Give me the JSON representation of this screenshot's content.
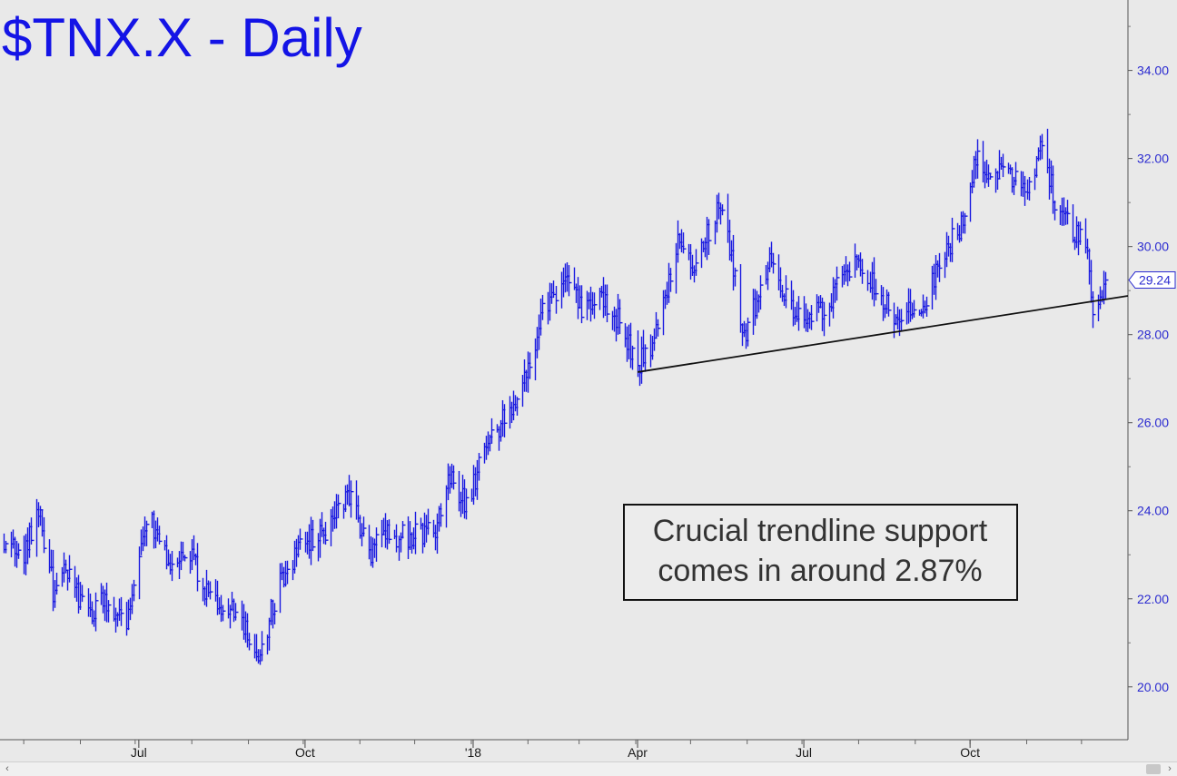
{
  "chart_data": {
    "type": "ohlc",
    "title": "$TNX.X - Daily",
    "ylim": [
      18.8,
      35.6
    ],
    "y_ticks": [
      20,
      22,
      24,
      26,
      28,
      30,
      32,
      34
    ],
    "y_tick_labels": [
      "20.00",
      "22.00",
      "24.00",
      "26.00",
      "28.00",
      "30.00",
      "32.00",
      "34.00"
    ],
    "x_start": "2017-04-20",
    "x_end": "2018-12-14",
    "x_ticks": [
      {
        "label": "Jul",
        "date": "2017-07-03"
      },
      {
        "label": "Oct",
        "date": "2017-10-02"
      },
      {
        "label": "'18",
        "date": "2018-01-02"
      },
      {
        "label": "Apr",
        "date": "2018-04-02"
      },
      {
        "label": "Jul",
        "date": "2018-07-02"
      },
      {
        "label": "Oct",
        "date": "2018-10-01"
      }
    ],
    "last_value": "29.24",
    "price_path": [
      [
        "2017-04-20",
        23.2
      ],
      [
        "2017-05-01",
        23.0
      ],
      [
        "2017-05-09",
        24.0
      ],
      [
        "2017-05-12",
        23.4
      ],
      [
        "2017-05-17",
        22.2
      ],
      [
        "2017-05-24",
        22.7
      ],
      [
        "2017-06-06",
        21.5
      ],
      [
        "2017-06-14",
        22.0
      ],
      [
        "2017-06-26",
        21.4
      ],
      [
        "2017-07-07",
        23.8
      ],
      [
        "2017-07-12",
        23.6
      ],
      [
        "2017-07-20",
        22.7
      ],
      [
        "2017-07-28",
        23.2
      ],
      [
        "2017-08-11",
        22.0
      ],
      [
        "2017-08-25",
        21.7
      ],
      [
        "2017-09-07",
        20.6
      ],
      [
        "2017-09-13",
        21.7
      ],
      [
        "2017-09-21",
        22.7
      ],
      [
        "2017-10-03",
        23.3
      ],
      [
        "2017-10-11",
        23.4
      ],
      [
        "2017-10-25",
        24.4
      ],
      [
        "2017-11-07",
        23.1
      ],
      [
        "2017-11-14",
        23.5
      ],
      [
        "2017-11-24",
        23.4
      ],
      [
        "2017-12-06",
        23.5
      ],
      [
        "2017-12-13",
        23.6
      ],
      [
        "2017-12-20",
        24.8
      ],
      [
        "2017-12-29",
        24.1
      ],
      [
        "2018-01-09",
        25.5
      ],
      [
        "2018-01-24",
        26.4
      ],
      [
        "2018-02-01",
        27.2
      ],
      [
        "2018-02-09",
        28.5
      ],
      [
        "2018-02-21",
        29.4
      ],
      [
        "2018-03-01",
        28.6
      ],
      [
        "2018-03-12",
        28.8
      ],
      [
        "2018-03-22",
        28.4
      ],
      [
        "2018-04-02",
        27.3
      ],
      [
        "2018-04-10",
        27.8
      ],
      [
        "2018-04-24",
        30.0
      ],
      [
        "2018-05-02",
        29.5
      ],
      [
        "2018-05-17",
        31.0
      ],
      [
        "2018-05-25",
        29.3
      ],
      [
        "2018-05-29",
        27.9
      ],
      [
        "2018-06-13",
        29.6
      ],
      [
        "2018-06-28",
        28.5
      ],
      [
        "2018-07-13",
        28.5
      ],
      [
        "2018-07-24",
        29.4
      ],
      [
        "2018-08-01",
        29.8
      ],
      [
        "2018-08-13",
        28.8
      ],
      [
        "2018-08-22",
        28.3
      ],
      [
        "2018-09-06",
        28.8
      ],
      [
        "2018-09-17",
        29.9
      ],
      [
        "2018-09-28",
        30.6
      ],
      [
        "2018-10-05",
        32.2
      ],
      [
        "2018-10-12",
        31.4
      ],
      [
        "2018-10-19",
        31.9
      ],
      [
        "2018-11-01",
        31.1
      ],
      [
        "2018-11-08",
        32.2
      ],
      [
        "2018-11-16",
        31.1
      ],
      [
        "2018-11-23",
        30.6
      ],
      [
        "2018-12-04",
        29.9
      ],
      [
        "2018-12-07",
        28.6
      ],
      [
        "2018-12-10",
        28.9
      ],
      [
        "2018-12-14",
        29.24
      ]
    ],
    "trendline": [
      [
        "2018-04-02",
        27.15
      ],
      [
        "2018-12-14",
        28.8
      ]
    ],
    "annotation": [
      "Crucial trendline support",
      "comes in around 2.87%"
    ]
  },
  "colors": {
    "bars": "#1a1ae0",
    "title": "#1414e6",
    "trendline": "#111111",
    "background": "#e9e9e9"
  },
  "scrollbar": {
    "left_arrow_icon": "chevron-left-icon",
    "right_arrow_icon": "chevron-right-icon",
    "left_glyph": "‹",
    "right_glyph": "›"
  }
}
